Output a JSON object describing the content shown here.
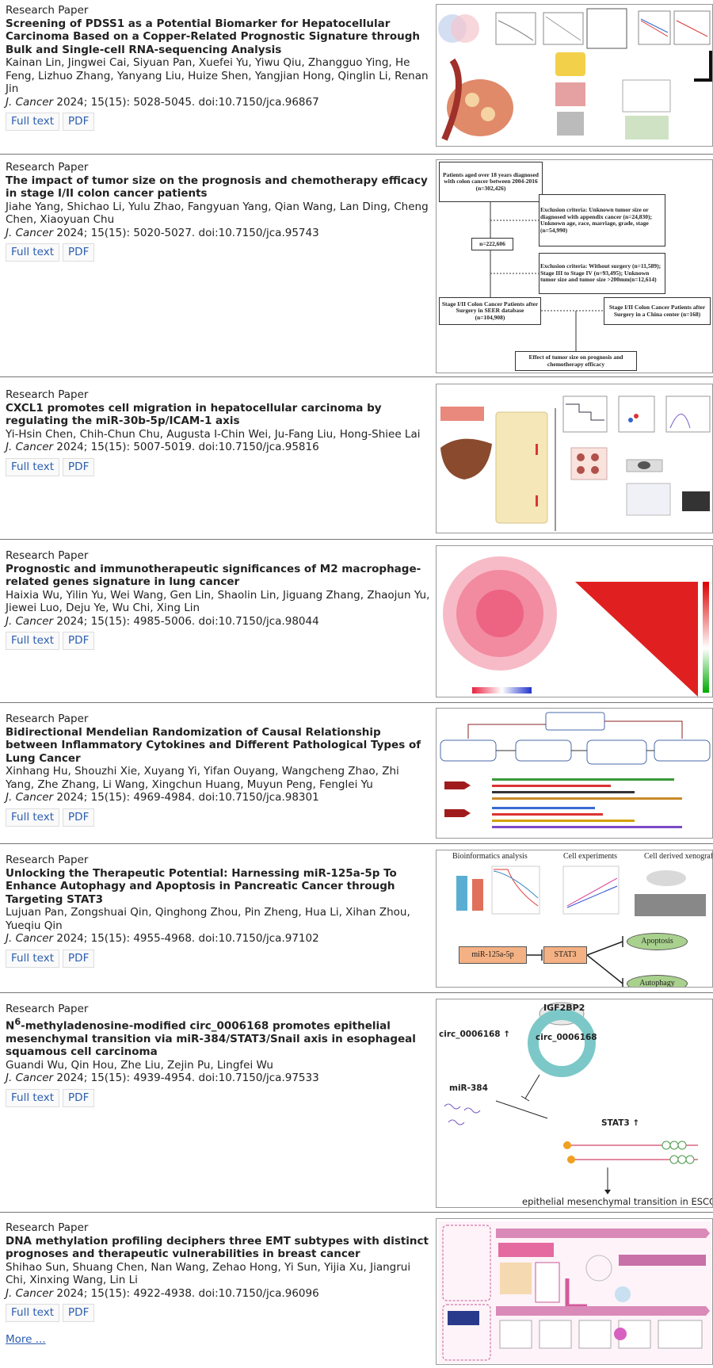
{
  "articles": [
    {
      "type": "Research Paper",
      "title": "Screening of PDSS1 as a Potential Biomarker for Hepatocellular Carcinoma Based on a Copper-Related Prognostic Signature through Bulk and Single-cell RNA-sequencing Analysis",
      "authors": "Kainan Lin, Jingwei Cai, Siyuan Pan, Xuefei Yu, Yiwu Qiu, Zhangguo Ying, He Feng, Lizhuo Zhang, Yanyang Liu, Huize Shen, Yangjian Hong, Qinglin Li, Renan Jin",
      "journal": "J. Cancer",
      "citation": "2024; 15(15): 5028-5045. doi:10.7150/jca.96867",
      "links": [
        "Full text",
        "PDF"
      ]
    },
    {
      "type": "Research Paper",
      "title": "The impact of tumor size on the prognosis and chemotherapy efficacy in stage I/II colon cancer patients",
      "authors": "Jiahe Yang, Shichao Li, Yulu Zhao, Fangyuan Yang, Qian Wang, Lan Ding, Cheng Chen, Xiaoyuan Chu",
      "journal": "J. Cancer",
      "citation": "2024; 15(15): 5020-5027. doi:10.7150/jca.95743",
      "links": [
        "Full text",
        "PDF"
      ],
      "figure": {
        "boxes": [
          "Patients aged over 18 years diagnosed with colon cancer between 2004-2016 (n=302,426)",
          "Exclusion criteria: Unknown tumor size or diagnosed with appendix cancer (n=24,830); Unknown age, race, marriage, grade, stage (n=54,990)",
          "n=222,606",
          "Exclusion criteria: Without surgery (n=11,589); Stage III to Stage IV (n=93,495); Unknown tumor size and tumor size >200mm(n=12,614)",
          "Stage I/II Colon Cancer Patients after Surgery in SEER database (n=104,908)",
          "Stage I/II Colon Cancer Patients after Surgery in a China center (n=168)",
          "Effect of tumor size on prognosis and chemotherapy efficacy"
        ]
      }
    },
    {
      "type": "Research Paper",
      "title": "CXCL1 promotes cell migration in hepatocellular carcinoma by regulating the miR-30b-5p/ICAM-1 axis",
      "authors": "Yi-Hsin Chen, Chih-Chun Chu, Augusta I-Chin Wei, Ju-Fang Liu, Hong-Shiee Lai",
      "journal": "J. Cancer",
      "citation": "2024; 15(15): 5007-5019. doi:10.7150/jca.95816",
      "links": [
        "Full text",
        "PDF"
      ]
    },
    {
      "type": "Research Paper",
      "title": "Prognostic and immunotherapeutic significances of M2 macrophage-related genes signature in lung cancer",
      "authors": "Haixia Wu, Yilin Yu, Wei Wang, Gen Lin, Shaolin Lin, Jiguang Zhang, Zhaojun Yu, Jiewei Luo, Deju Ye, Wu Chi, Xing Lin",
      "journal": "J. Cancer",
      "citation": "2024; 15(15): 4985-5006. doi:10.7150/jca.98044",
      "links": [
        "Full text",
        "PDF"
      ]
    },
    {
      "type": "Research Paper",
      "title": "Bidirectional Mendelian Randomization of Causal Relationship between Inflammatory Cytokines and Different Pathological Types of Lung Cancer",
      "authors": "Xinhang Hu, Shouzhi Xie, Xuyang Yi, Yifan Ouyang, Wangcheng Zhao, Zhi Yang, Zhe Zhang, Li Wang, Xingchun Huang, Muyun Peng, Fenglei Yu",
      "journal": "J. Cancer",
      "citation": "2024; 15(15): 4969-4984. doi:10.7150/jca.98301",
      "links": [
        "Full text",
        "PDF"
      ]
    },
    {
      "type": "Research Paper",
      "title": "Unlocking the Therapeutic Potential: Harnessing miR-125a-5p To Enhance Autophagy and Apoptosis in Pancreatic Cancer through Targeting STAT3",
      "authors": "Lujuan Pan, Zongshuai Qin, Qinghong Zhou, Pin Zheng, Hua Li, Xihan Zhou, Yueqiu Qin",
      "journal": "J. Cancer",
      "citation": "2024; 15(15): 4955-4968. doi:10.7150/jca.97102",
      "links": [
        "Full text",
        "PDF"
      ],
      "figure": {
        "labels": [
          "Bioinformatics analysis",
          "Cell experiments",
          "Cell derived xenograft",
          "miR-125a-5p",
          "STAT3",
          "Apoptosis",
          "Autophagy"
        ]
      }
    },
    {
      "type": "Research Paper",
      "title": "N",
      "title_sup": "6",
      "title_rest": "-methyladenosine-modified circ_0006168 promotes epithelial mesenchymal transition via miR-384/STAT3/Snail axis in esophageal squamous cell carcinoma",
      "authors": "Guandi Wu, Qin Hou, Zhe Liu, Zejin Pu, Lingfei Wu",
      "journal": "J. Cancer",
      "citation": "2024; 15(15): 4939-4954. doi:10.7150/jca.97533",
      "links": [
        "Full text",
        "PDF"
      ],
      "figure": {
        "labels": [
          "IGF2BP2",
          "circ_0006168",
          "circ_0006168 ↑",
          "miR-384",
          "STAT3 ↑",
          "epithelial mesenchymal transition in ESCC"
        ]
      }
    },
    {
      "type": "Research Paper",
      "title": "DNA methylation profiling deciphers three EMT subtypes with distinct prognoses and therapeutic vulnerabilities in breast cancer",
      "authors": "Shihao Sun, Shuang Chen, Nan Wang, Zehao Hong, Yi Sun, Yijia Xu, Jiangrui Chi, Xinxing Wang, Lin Li",
      "journal": "J. Cancer",
      "citation": "2024; 15(15): 4922-4938. doi:10.7150/jca.96096",
      "links": [
        "Full text",
        "PDF"
      ]
    }
  ],
  "more": "More ..."
}
